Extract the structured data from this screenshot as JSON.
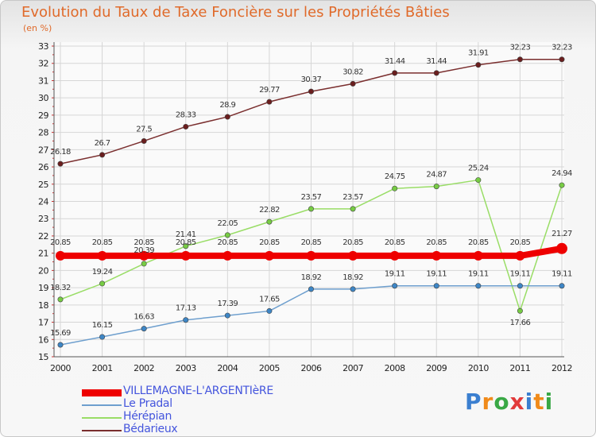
{
  "title": "Evolution du Taux de Taxe Foncière sur les Propriétés Bâties",
  "unit_label": "(en %)",
  "brand": {
    "text": "Proxiti",
    "colors": [
      "#3b7fd0",
      "#f08a1a",
      "#39a845",
      "#e23a3a",
      "#3b7fd0",
      "#f08a1a",
      "#39a845"
    ]
  },
  "chart_data": {
    "type": "line",
    "title": "Evolution du Taux de Taxe Foncière sur les Propriétés Bâties",
    "ylabel": "(en %)",
    "xlabel": "",
    "x": [
      "2000",
      "2001",
      "2002",
      "2003",
      "2004",
      "2005",
      "2006",
      "2007",
      "2008",
      "2009",
      "2010",
      "2011",
      "2012"
    ],
    "ylim": [
      15,
      33
    ],
    "yticks": [
      "15",
      "16",
      "17",
      "18",
      "19",
      "20",
      "21",
      "22",
      "23",
      "24",
      "25",
      "26",
      "27",
      "28",
      "29",
      "30",
      "31",
      "32",
      "33"
    ],
    "grid": true,
    "legend_position": "bottom-left",
    "series": [
      {
        "name": "VILLEMAGNE-L'ARGENTIèRE",
        "color": "#ee0000",
        "point_color": "#ee0000",
        "values": [
          20.85,
          20.85,
          20.85,
          20.85,
          20.85,
          20.85,
          20.85,
          20.85,
          20.85,
          20.85,
          20.85,
          20.85,
          21.27
        ],
        "labels": [
          "20.85",
          "20.85",
          "20.85",
          "20.85",
          "20.85",
          "20.85",
          "20.85",
          "20.85",
          "20.85",
          "20.85",
          "20.85",
          "20.85",
          "21.27"
        ]
      },
      {
        "name": "Le Pradal",
        "color": "#6e9fce",
        "point_color": "#3d86c6",
        "values": [
          15.69,
          16.15,
          16.63,
          17.13,
          17.39,
          17.65,
          18.92,
          18.92,
          19.11,
          19.11,
          19.11,
          19.11,
          19.11
        ],
        "labels": [
          "15.69",
          "16.15",
          "16.63",
          "17.13",
          "17.39",
          "17.65",
          "18.92",
          "18.92",
          "19.11",
          "19.11",
          "19.11",
          "19.11",
          "19.11"
        ]
      },
      {
        "name": "Hérépian",
        "color": "#99dd66",
        "point_color": "#77cc44",
        "values": [
          18.32,
          19.24,
          20.39,
          21.41,
          22.05,
          22.82,
          23.57,
          23.57,
          24.75,
          24.87,
          25.24,
          17.66,
          24.94
        ],
        "labels": [
          "18.32",
          "19.24",
          "20.39",
          "21.41",
          "22.05",
          "22.82",
          "23.57",
          "23.57",
          "24.75",
          "24.87",
          "25.24",
          "17.66",
          "24.94"
        ]
      },
      {
        "name": "Bédarieux",
        "color": "#7a2e2e",
        "point_color": "#6a1e1e",
        "values": [
          26.18,
          26.7,
          27.5,
          28.33,
          28.9,
          29.77,
          30.37,
          30.82,
          31.44,
          31.44,
          31.91,
          32.23,
          32.23
        ],
        "labels": [
          "26.18",
          "26.7",
          "27.5",
          "28.33",
          "28.9",
          "29.77",
          "30.37",
          "30.82",
          "31.44",
          "31.44",
          "31.91",
          "32.23",
          "32.23"
        ]
      }
    ]
  }
}
